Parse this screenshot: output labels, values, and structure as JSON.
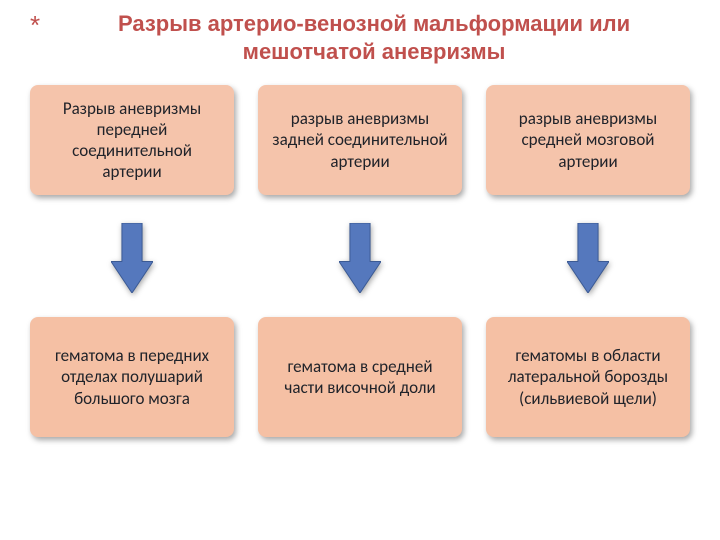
{
  "title": "Разрыв артерио-венозной мальформации или мешотчатой аневризмы",
  "bullet_glyph": "*",
  "title_color": "#c0504d",
  "box_top_bg": "#f5c4ab",
  "box_bottom_bg": "#f5c0a4",
  "box_top_height": 110,
  "box_bottom_height": 120,
  "arrow": {
    "fill": "#5578bd",
    "stroke": "#3b5a94",
    "height": 70,
    "width": 42,
    "gap_above": 28,
    "gap_below": 24
  },
  "columns": [
    {
      "top_text": "Разрыв аневризмы передней соединительной артерии",
      "bottom_text": "гематома в передних отделах полушарий большого мозга"
    },
    {
      "top_text": "разрыв аневризмы задней соединительной артерии",
      "bottom_text": "гематома в средней части височной доли"
    },
    {
      "top_text": "разрыв аневризмы средней мозговой артерии",
      "bottom_text": "гематомы в области латеральной борозды (сильвиевой щели)"
    }
  ]
}
